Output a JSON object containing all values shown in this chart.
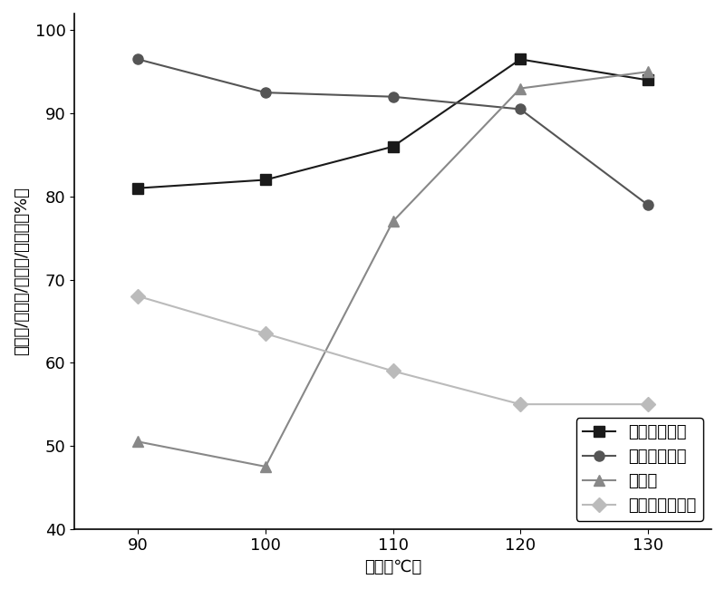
{
  "x": [
    90,
    100,
    110,
    120,
    130
  ],
  "lignin_removal": [
    81.0,
    82.0,
    86.0,
    96.5,
    94.0
  ],
  "cellulose_recovery": [
    96.5,
    92.5,
    92.0,
    90.5,
    79.0
  ],
  "saccharification": [
    50.5,
    47.5,
    77.0,
    93.0,
    95.0
  ],
  "crystallinity": [
    68.0,
    63.5,
    59.0,
    55.0,
    55.0
  ],
  "xlabel": "温度（℃）",
  "ylabel": "去除率/回收率/糖化率/结晶度（%）",
  "ylim": [
    40,
    102
  ],
  "yticks": [
    40,
    50,
    60,
    70,
    80,
    90,
    100
  ],
  "xticks": [
    90,
    100,
    110,
    120,
    130
  ],
  "legend_labels": [
    "木质素去除率",
    "纤维素回收率",
    "糖化率",
    "纤维素的结晶度"
  ],
  "line_colors": [
    "#1a1a1a",
    "#555555",
    "#888888",
    "#bbbbbb"
  ],
  "marker_styles": [
    "s",
    "o",
    "^",
    "D"
  ],
  "marker_sizes": [
    8,
    8,
    8,
    8
  ],
  "linewidth": 1.5,
  "label_fontsize": 13,
  "tick_fontsize": 13,
  "legend_fontsize": 13,
  "figsize": [
    8.0,
    6.5
  ],
  "dpi": 100
}
